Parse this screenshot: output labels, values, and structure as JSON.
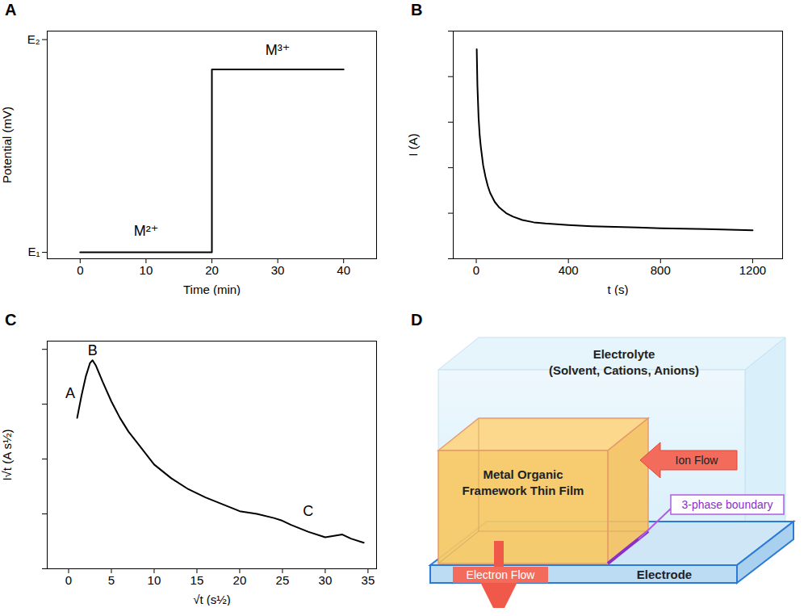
{
  "chart_data": [
    {
      "panel": "A",
      "type": "line",
      "xlabel": "Time (min)",
      "ylabel": "Potential (mV)",
      "xlim": [
        -5,
        45
      ],
      "xticks": [
        0,
        10,
        20,
        30,
        40
      ],
      "ylim": [
        -0.03,
        1.04
      ],
      "yticks": [
        {
          "value": 0,
          "label": "E₁"
        },
        {
          "value": 1,
          "label": "E₂"
        }
      ],
      "x": [
        0,
        20,
        20,
        40
      ],
      "values": [
        0,
        0,
        0.86,
        0.86
      ],
      "color": "#000000",
      "annotations": [
        {
          "text": "M²⁺",
          "x": 10,
          "y": 0.1
        },
        {
          "text": "M³⁺",
          "x": 30,
          "y": 0.95
        }
      ]
    },
    {
      "panel": "B",
      "type": "line",
      "xlabel": "t (s)",
      "ylabel": "I (A)",
      "xlim": [
        -100,
        1330
      ],
      "xticks": [
        0,
        400,
        800,
        1200
      ],
      "ylim": [
        0,
        10
      ],
      "yticks": [
        0,
        2,
        4,
        6,
        8,
        10
      ],
      "tick_labels": "x",
      "x": [
        2,
        5,
        10,
        15,
        20,
        30,
        40,
        50,
        60,
        80,
        100,
        130,
        160,
        200,
        250,
        300,
        400,
        500,
        600,
        700,
        800,
        900,
        1000,
        1100,
        1200
      ],
      "values": [
        9.2,
        7.6,
        6.2,
        5.4,
        4.9,
        4.1,
        3.6,
        3.2,
        2.9,
        2.5,
        2.25,
        2.0,
        1.85,
        1.7,
        1.6,
        1.55,
        1.48,
        1.43,
        1.4,
        1.37,
        1.34,
        1.32,
        1.3,
        1.28,
        1.25
      ],
      "color": "#000000"
    },
    {
      "panel": "C",
      "type": "line",
      "xlabel": "√t (s½)",
      "ylabel": "I√t (A s½)",
      "xlim": [
        -2.5,
        36
      ],
      "xticks": [
        0,
        5,
        10,
        15,
        20,
        25,
        30,
        35
      ],
      "ylim": [
        0,
        8.3
      ],
      "yticks": [
        0,
        2,
        4,
        6,
        8
      ],
      "tick_labels": "x",
      "x": [
        1,
        1.5,
        2,
        2.5,
        2.8,
        3.2,
        4,
        5,
        6,
        7,
        8,
        10,
        12,
        14,
        16,
        18,
        20,
        22,
        24,
        25,
        26,
        28,
        30,
        31,
        32,
        33,
        34.5
      ],
      "values": [
        5.5,
        6.3,
        7.0,
        7.5,
        7.6,
        7.4,
        6.8,
        6.1,
        5.5,
        5.0,
        4.6,
        3.8,
        3.3,
        2.9,
        2.6,
        2.35,
        2.1,
        2.0,
        1.85,
        1.75,
        1.6,
        1.35,
        1.15,
        1.2,
        1.25,
        1.1,
        0.95
      ],
      "color": "#000000",
      "annotations": [
        {
          "text": "A",
          "x": 0.2,
          "y": 6.4
        },
        {
          "text": "B",
          "x": 2.8,
          "y": 7.95
        },
        {
          "text": "C",
          "x": 28,
          "y": 2.1
        }
      ]
    }
  ],
  "diagram": {
    "panel": "D",
    "electrolyte": {
      "label": "Electrolyte",
      "sublabel": "(Solvent, Cations, Anions)"
    },
    "film": [
      "Metal Organic",
      "Framework Thin Film"
    ],
    "ion_flow": "Ion Flow",
    "boundary": "3-phase boundary",
    "electron_flow": "Electron Flow",
    "electrode": "Electrode"
  }
}
